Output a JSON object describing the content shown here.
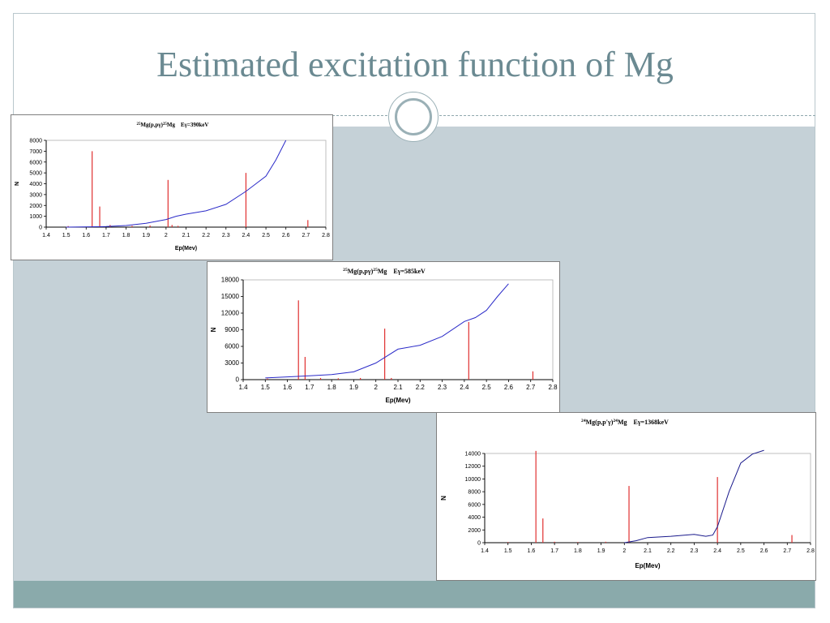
{
  "slide": {
    "title": "Estimated excitation  function of Mg",
    "colors": {
      "title": "#6b8a92",
      "band": "#c5d1d7",
      "footer": "#8aaaab",
      "peaks": "#e03030",
      "curve": "#2a2ac8"
    }
  },
  "chart_data": [
    {
      "type": "line",
      "title": {
        "pre": "25",
        "mid1": "Mg(p,pγ)",
        "sup2": "25",
        "mid2": "Mg",
        "tail": "Eγ=390keV"
      },
      "xlabel": "Ep(Mev)",
      "ylabel": "N",
      "xlim": [
        1.4,
        2.8
      ],
      "ylim": [
        0,
        8000
      ],
      "xticks": [
        1.4,
        1.5,
        1.6,
        1.7,
        1.8,
        1.9,
        2.0,
        2.1,
        2.2,
        2.3,
        2.4,
        2.5,
        2.6,
        2.7,
        2.8
      ],
      "xtick_labels": [
        "1.4",
        "1.5",
        "1.6",
        "1.7",
        "1.8",
        "1.9",
        "2",
        "2.1",
        "2.2",
        "2.3",
        "2.4",
        "2.5",
        "2.6",
        "2.7",
        "2.8"
      ],
      "yticks": [
        0,
        1000,
        2000,
        3000,
        4000,
        5000,
        6000,
        7000,
        8000
      ],
      "ytick_labels": [
        "0",
        "1000",
        "2000",
        "3000",
        "4000",
        "5000",
        "6000",
        "7000",
        "8000"
      ],
      "series": [
        {
          "kind": "peaks",
          "color": "#e03030",
          "x": [
            1.51,
            1.63,
            1.668,
            1.72,
            1.83,
            1.92,
            2.01,
            2.03,
            2.06,
            2.4,
            2.71
          ],
          "y": [
            100,
            7000,
            1900,
            200,
            120,
            150,
            4350,
            200,
            120,
            5000,
            650
          ]
        },
        {
          "kind": "curve",
          "color": "#2a2ac8",
          "x": [
            1.5,
            1.7,
            1.8,
            1.9,
            2.0,
            2.05,
            2.1,
            2.2,
            2.3,
            2.4,
            2.45,
            2.5,
            2.55,
            2.6
          ],
          "y": [
            0,
            50,
            150,
            350,
            700,
            1000,
            1200,
            1500,
            2100,
            3300,
            4000,
            4700,
            6200,
            8000
          ]
        }
      ]
    },
    {
      "type": "line",
      "title": {
        "pre": "25",
        "mid1": "Mg(p,pγ)",
        "sup2": "25",
        "mid2": "Mg",
        "tail": "Eγ=585keV"
      },
      "xlabel": "Ep(Mev)",
      "ylabel": "N",
      "xlim": [
        1.4,
        2.8
      ],
      "ylim": [
        0,
        18000
      ],
      "xticks": [
        1.4,
        1.5,
        1.6,
        1.7,
        1.8,
        1.9,
        2.0,
        2.1,
        2.2,
        2.3,
        2.4,
        2.5,
        2.6,
        2.7,
        2.8
      ],
      "xtick_labels": [
        "1.4",
        "1.5",
        "1.6",
        "1.7",
        "1.8",
        "1.9",
        "2",
        "2.1",
        "2.2",
        "2.3",
        "2.4",
        "2.5",
        "2.6",
        "2.7",
        "2.8"
      ],
      "yticks": [
        0,
        3000,
        6000,
        9000,
        12000,
        15000,
        18000
      ],
      "ytick_labels": [
        "0",
        "3000",
        "6000",
        "9000",
        "12000",
        "15000",
        "18000"
      ],
      "series": [
        {
          "kind": "peaks",
          "color": "#e03030",
          "x": [
            1.51,
            1.65,
            1.68,
            1.75,
            1.83,
            1.93,
            2.04,
            2.07,
            2.42,
            2.71
          ],
          "y": [
            200,
            14300,
            4100,
            300,
            250,
            300,
            9200,
            300,
            10400,
            1500
          ]
        },
        {
          "kind": "curve",
          "color": "#2a2ac8",
          "x": [
            1.5,
            1.6,
            1.7,
            1.8,
            1.9,
            2.0,
            2.1,
            2.2,
            2.3,
            2.4,
            2.45,
            2.5,
            2.55,
            2.6
          ],
          "y": [
            300,
            500,
            700,
            900,
            1400,
            3000,
            5500,
            6200,
            7800,
            10500,
            11200,
            12500,
            15000,
            17300
          ]
        }
      ]
    },
    {
      "type": "line",
      "title": {
        "pre": "24",
        "mid1": "Mg(p,p'γ)",
        "sup2": "24",
        "mid2": "Mg",
        "tail": "Eγ=1368keV"
      },
      "xlabel": "Ep(Mev)",
      "ylabel": "N",
      "xlim": [
        1.4,
        2.8
      ],
      "ylim": [
        0,
        14000
      ],
      "xticks": [
        1.4,
        1.5,
        1.6,
        1.7,
        1.8,
        1.9,
        2.0,
        2.1,
        2.2,
        2.3,
        2.4,
        2.5,
        2.6,
        2.7,
        2.8
      ],
      "xtick_labels": [
        "1.4",
        "1.5",
        "1.6",
        "1.7",
        "1.8",
        "1.9",
        "2",
        "2.1",
        "2.2",
        "2.3",
        "2.4",
        "2.5",
        "2.6",
        "2.7",
        "2.8"
      ],
      "yticks": [
        0,
        2000,
        4000,
        6000,
        8000,
        10000,
        12000,
        14000
      ],
      "ytick_labels": [
        "0",
        "2000",
        "4000",
        "6000",
        "8000",
        "10000",
        "12000",
        "14000"
      ],
      "series": [
        {
          "kind": "peaks",
          "color": "#e03030",
          "x": [
            1.5,
            1.62,
            1.65,
            1.7,
            1.8,
            1.92,
            2.02,
            2.4,
            2.72
          ],
          "y": [
            100,
            14400,
            3800,
            150,
            100,
            150,
            8900,
            10300,
            1200
          ]
        },
        {
          "kind": "curve",
          "color": "#1a1a8c",
          "x": [
            2.0,
            2.05,
            2.1,
            2.2,
            2.3,
            2.35,
            2.38,
            2.4,
            2.45,
            2.5,
            2.55,
            2.6
          ],
          "y": [
            0,
            300,
            800,
            1000,
            1300,
            1000,
            1200,
            2500,
            8000,
            12500,
            13900,
            14500
          ]
        }
      ]
    }
  ]
}
